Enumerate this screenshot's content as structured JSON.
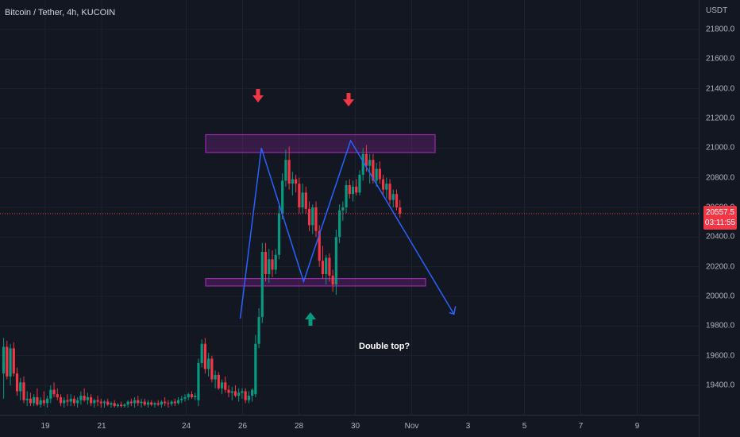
{
  "header": {
    "symbol": "Bitcoin / Tether, 4h, KUCOIN"
  },
  "price_axis": {
    "currency": "USDT",
    "labels": [
      "21800.0",
      "21600.0",
      "21400.0",
      "21200.0",
      "21000.0",
      "20800.0",
      "20600.0",
      "20400.0",
      "20200.0",
      "20000.0",
      "19800.0",
      "19600.0",
      "19400.0"
    ]
  },
  "time_axis": {
    "labels": [
      "19",
      "21",
      "24",
      "26",
      "28",
      "30",
      "Nov",
      "3",
      "5",
      "7",
      "9"
    ]
  },
  "last_price": {
    "value": "20557.5",
    "countdown": "03:11:55"
  },
  "annotation": {
    "text": "Double top?"
  },
  "colors": {
    "background": "#131722",
    "up": "#089981",
    "down": "#f23645",
    "zone": "#9c27b0",
    "line": "#2962ff",
    "grid": "#1e222d"
  },
  "markers": [
    "arrow-down-red",
    "arrow-down-red",
    "arrow-up-green"
  ],
  "chart_data": {
    "type": "candlestick",
    "ylim": [
      19250,
      21900
    ],
    "zones": [
      {
        "from": 20970,
        "to": 21090
      },
      {
        "from": 20070,
        "to": 20120
      }
    ],
    "pattern_points": [
      {
        "x": "Oct 25 22:00",
        "y": 19850
      },
      {
        "x": "Oct 26 16:00",
        "y": 21000
      },
      {
        "x": "Oct 28 04:00",
        "y": 20100
      },
      {
        "x": "Oct 29 20:00",
        "y": 21050
      },
      {
        "x": "Nov 02 12:00",
        "y": 19880
      }
    ],
    "candles": [
      {
        "o": 19480,
        "h": 19720,
        "l": 19310,
        "c": 19660
      },
      {
        "o": 19660,
        "h": 19700,
        "l": 19440,
        "c": 19460
      },
      {
        "o": 19460,
        "h": 19680,
        "l": 19400,
        "c": 19650
      },
      {
        "o": 19650,
        "h": 19690,
        "l": 19460,
        "c": 19480
      },
      {
        "o": 19480,
        "h": 19520,
        "l": 19330,
        "c": 19360
      },
      {
        "o": 19360,
        "h": 19450,
        "l": 19300,
        "c": 19420
      },
      {
        "o": 19420,
        "h": 19460,
        "l": 19280,
        "c": 19300
      },
      {
        "o": 19300,
        "h": 19360,
        "l": 19260,
        "c": 19310
      },
      {
        "o": 19310,
        "h": 19350,
        "l": 19260,
        "c": 19280
      },
      {
        "o": 19280,
        "h": 19340,
        "l": 19260,
        "c": 19320
      },
      {
        "o": 19320,
        "h": 19380,
        "l": 19260,
        "c": 19270
      },
      {
        "o": 19270,
        "h": 19320,
        "l": 19250,
        "c": 19300
      },
      {
        "o": 19300,
        "h": 19360,
        "l": 19260,
        "c": 19280
      },
      {
        "o": 19280,
        "h": 19330,
        "l": 19250,
        "c": 19310
      },
      {
        "o": 19310,
        "h": 19400,
        "l": 19280,
        "c": 19370
      },
      {
        "o": 19370,
        "h": 19420,
        "l": 19320,
        "c": 19340
      },
      {
        "o": 19340,
        "h": 19380,
        "l": 19300,
        "c": 19320
      },
      {
        "o": 19320,
        "h": 19340,
        "l": 19260,
        "c": 19280
      },
      {
        "o": 19280,
        "h": 19320,
        "l": 19250,
        "c": 19300
      },
      {
        "o": 19300,
        "h": 19340,
        "l": 19260,
        "c": 19290
      },
      {
        "o": 19290,
        "h": 19340,
        "l": 19260,
        "c": 19310
      },
      {
        "o": 19310,
        "h": 19330,
        "l": 19260,
        "c": 19280
      },
      {
        "o": 19280,
        "h": 19320,
        "l": 19250,
        "c": 19300
      },
      {
        "o": 19300,
        "h": 19360,
        "l": 19270,
        "c": 19330
      },
      {
        "o": 19330,
        "h": 19380,
        "l": 19290,
        "c": 19300
      },
      {
        "o": 19300,
        "h": 19350,
        "l": 19270,
        "c": 19320
      },
      {
        "o": 19320,
        "h": 19340,
        "l": 19260,
        "c": 19280
      },
      {
        "o": 19280,
        "h": 19310,
        "l": 19250,
        "c": 19300
      },
      {
        "o": 19300,
        "h": 19330,
        "l": 19260,
        "c": 19290
      },
      {
        "o": 19290,
        "h": 19310,
        "l": 19250,
        "c": 19280
      },
      {
        "o": 19280,
        "h": 19300,
        "l": 19250,
        "c": 19290
      },
      {
        "o": 19290,
        "h": 19310,
        "l": 19260,
        "c": 19270
      },
      {
        "o": 19270,
        "h": 19290,
        "l": 19250,
        "c": 19280
      },
      {
        "o": 19280,
        "h": 19300,
        "l": 19250,
        "c": 19260
      },
      {
        "o": 19260,
        "h": 19280,
        "l": 19250,
        "c": 19270
      },
      {
        "o": 19270,
        "h": 19290,
        "l": 19250,
        "c": 19260
      },
      {
        "o": 19260,
        "h": 19280,
        "l": 19250,
        "c": 19270
      },
      {
        "o": 19270,
        "h": 19300,
        "l": 19250,
        "c": 19290
      },
      {
        "o": 19290,
        "h": 19310,
        "l": 19260,
        "c": 19280
      },
      {
        "o": 19280,
        "h": 19320,
        "l": 19250,
        "c": 19300
      },
      {
        "o": 19300,
        "h": 19330,
        "l": 19260,
        "c": 19280
      },
      {
        "o": 19280,
        "h": 19310,
        "l": 19250,
        "c": 19290
      },
      {
        "o": 19290,
        "h": 19310,
        "l": 19260,
        "c": 19270
      },
      {
        "o": 19270,
        "h": 19300,
        "l": 19250,
        "c": 19285
      },
      {
        "o": 19285,
        "h": 19300,
        "l": 19260,
        "c": 19270
      },
      {
        "o": 19270,
        "h": 19290,
        "l": 19250,
        "c": 19280
      },
      {
        "o": 19280,
        "h": 19300,
        "l": 19260,
        "c": 19270
      },
      {
        "o": 19270,
        "h": 19300,
        "l": 19250,
        "c": 19290
      },
      {
        "o": 19290,
        "h": 19320,
        "l": 19260,
        "c": 19280
      },
      {
        "o": 19280,
        "h": 19300,
        "l": 19250,
        "c": 19275
      },
      {
        "o": 19275,
        "h": 19300,
        "l": 19260,
        "c": 19290
      },
      {
        "o": 19290,
        "h": 19310,
        "l": 19260,
        "c": 19280
      },
      {
        "o": 19280,
        "h": 19320,
        "l": 19270,
        "c": 19300
      },
      {
        "o": 19300,
        "h": 19330,
        "l": 19280,
        "c": 19310
      },
      {
        "o": 19310,
        "h": 19340,
        "l": 19290,
        "c": 19320
      },
      {
        "o": 19320,
        "h": 19350,
        "l": 19300,
        "c": 19340
      },
      {
        "o": 19340,
        "h": 19360,
        "l": 19310,
        "c": 19320
      },
      {
        "o": 19320,
        "h": 19350,
        "l": 19300,
        "c": 19330
      },
      {
        "o": 19300,
        "h": 19580,
        "l": 19260,
        "c": 19550
      },
      {
        "o": 19550,
        "h": 19710,
        "l": 19520,
        "c": 19680
      },
      {
        "o": 19680,
        "h": 19720,
        "l": 19480,
        "c": 19510
      },
      {
        "o": 19510,
        "h": 19620,
        "l": 19460,
        "c": 19580
      },
      {
        "o": 19580,
        "h": 19600,
        "l": 19420,
        "c": 19440
      },
      {
        "o": 19440,
        "h": 19500,
        "l": 19380,
        "c": 19470
      },
      {
        "o": 19470,
        "h": 19490,
        "l": 19370,
        "c": 19380
      },
      {
        "o": 19380,
        "h": 19440,
        "l": 19340,
        "c": 19420
      },
      {
        "o": 19420,
        "h": 19460,
        "l": 19350,
        "c": 19370
      },
      {
        "o": 19370,
        "h": 19400,
        "l": 19320,
        "c": 19350
      },
      {
        "o": 19350,
        "h": 19390,
        "l": 19300,
        "c": 19360
      },
      {
        "o": 19360,
        "h": 19400,
        "l": 19320,
        "c": 19330
      },
      {
        "o": 19330,
        "h": 19380,
        "l": 19290,
        "c": 19350
      },
      {
        "o": 19350,
        "h": 19380,
        "l": 19310,
        "c": 19360
      },
      {
        "o": 19360,
        "h": 19380,
        "l": 19280,
        "c": 19300
      },
      {
        "o": 19300,
        "h": 19360,
        "l": 19280,
        "c": 19330
      },
      {
        "o": 19330,
        "h": 19380,
        "l": 19290,
        "c": 19370
      },
      {
        "o": 19340,
        "h": 19740,
        "l": 19320,
        "c": 19680
      },
      {
        "o": 19680,
        "h": 19920,
        "l": 19650,
        "c": 19860
      },
      {
        "o": 19860,
        "h": 20360,
        "l": 19820,
        "c": 20300
      },
      {
        "o": 20300,
        "h": 20360,
        "l": 20100,
        "c": 20150
      },
      {
        "o": 20150,
        "h": 20320,
        "l": 20090,
        "c": 20250
      },
      {
        "o": 20250,
        "h": 20310,
        "l": 20130,
        "c": 20180
      },
      {
        "o": 20180,
        "h": 20320,
        "l": 20150,
        "c": 20280
      },
      {
        "o": 20280,
        "h": 20610,
        "l": 20250,
        "c": 20560
      },
      {
        "o": 20560,
        "h": 20830,
        "l": 20520,
        "c": 20780
      },
      {
        "o": 20780,
        "h": 20990,
        "l": 20740,
        "c": 20920
      },
      {
        "o": 20920,
        "h": 21010,
        "l": 20720,
        "c": 20760
      },
      {
        "o": 20760,
        "h": 20840,
        "l": 20680,
        "c": 20790
      },
      {
        "o": 20790,
        "h": 20820,
        "l": 20700,
        "c": 20760
      },
      {
        "o": 20760,
        "h": 20800,
        "l": 20560,
        "c": 20600
      },
      {
        "o": 20600,
        "h": 20760,
        "l": 20560,
        "c": 20700
      },
      {
        "o": 20700,
        "h": 20740,
        "l": 20560,
        "c": 20590
      },
      {
        "o": 20590,
        "h": 20640,
        "l": 20440,
        "c": 20480
      },
      {
        "o": 20480,
        "h": 20620,
        "l": 20420,
        "c": 20600
      },
      {
        "o": 20600,
        "h": 20640,
        "l": 20400,
        "c": 20440
      },
      {
        "o": 20440,
        "h": 20480,
        "l": 20200,
        "c": 20240
      },
      {
        "o": 20240,
        "h": 20340,
        "l": 20120,
        "c": 20150
      },
      {
        "o": 20150,
        "h": 20280,
        "l": 20080,
        "c": 20260
      },
      {
        "o": 20260,
        "h": 20290,
        "l": 20100,
        "c": 20140
      },
      {
        "o": 20140,
        "h": 20180,
        "l": 20030,
        "c": 20080
      },
      {
        "o": 20080,
        "h": 20450,
        "l": 20010,
        "c": 20400
      },
      {
        "o": 20400,
        "h": 20620,
        "l": 20360,
        "c": 20580
      },
      {
        "o": 20580,
        "h": 20640,
        "l": 20510,
        "c": 20600
      },
      {
        "o": 20600,
        "h": 20780,
        "l": 20560,
        "c": 20750
      },
      {
        "o": 20750,
        "h": 20790,
        "l": 20660,
        "c": 20690
      },
      {
        "o": 20690,
        "h": 20780,
        "l": 20640,
        "c": 20740
      },
      {
        "o": 20740,
        "h": 20790,
        "l": 20680,
        "c": 20700
      },
      {
        "o": 20700,
        "h": 20850,
        "l": 20680,
        "c": 20820
      },
      {
        "o": 20820,
        "h": 21000,
        "l": 20780,
        "c": 20960
      },
      {
        "o": 20960,
        "h": 21020,
        "l": 20840,
        "c": 20880
      },
      {
        "o": 20880,
        "h": 20960,
        "l": 20760,
        "c": 20920
      },
      {
        "o": 20920,
        "h": 20960,
        "l": 20760,
        "c": 20780
      },
      {
        "o": 20780,
        "h": 20900,
        "l": 20740,
        "c": 20860
      },
      {
        "o": 20860,
        "h": 20910,
        "l": 20760,
        "c": 20790
      },
      {
        "o": 20790,
        "h": 20820,
        "l": 20680,
        "c": 20720
      },
      {
        "o": 20720,
        "h": 20800,
        "l": 20660,
        "c": 20760
      },
      {
        "o": 20760,
        "h": 20790,
        "l": 20620,
        "c": 20650
      },
      {
        "o": 20650,
        "h": 20720,
        "l": 20600,
        "c": 20690
      },
      {
        "o": 20690,
        "h": 20720,
        "l": 20580,
        "c": 20600
      },
      {
        "o": 20600,
        "h": 20650,
        "l": 20530,
        "c": 20557.5
      }
    ]
  }
}
